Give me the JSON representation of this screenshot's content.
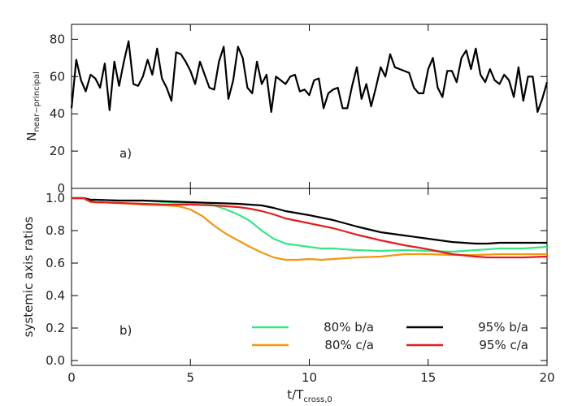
{
  "chart_data": [
    {
      "type": "line",
      "panel_label": "a)",
      "ylabel": {
        "main": "N",
        "sub": "near−principal"
      },
      "xlim": [
        0,
        20
      ],
      "ylim": [
        0,
        88
      ],
      "yticks": [
        "0",
        "20",
        "40",
        "60",
        "80"
      ],
      "ytick_values": [
        0,
        20,
        40,
        60,
        80
      ],
      "series": [
        {
          "color": "#000000",
          "x": [
            0,
            0.2,
            0.4,
            0.6,
            0.8,
            1.0,
            1.2,
            1.4,
            1.6,
            1.8,
            2.0,
            2.2,
            2.4,
            2.6,
            2.8,
            3.0,
            3.2,
            3.4,
            3.6,
            3.8,
            4.0,
            4.2,
            4.4,
            4.6,
            4.8,
            5.0,
            5.2,
            5.4,
            5.6,
            5.8,
            6.0,
            6.2,
            6.4,
            6.6,
            6.8,
            7.0,
            7.2,
            7.4,
            7.6,
            7.8,
            8.0,
            8.2,
            8.4,
            8.6,
            8.8,
            9.0,
            9.2,
            9.4,
            9.6,
            9.8,
            10.0,
            10.2,
            10.4,
            10.6,
            10.8,
            11.0,
            11.2,
            11.4,
            11.6,
            11.8,
            12.0,
            12.2,
            12.4,
            12.6,
            12.8,
            13.0,
            13.2,
            13.4,
            13.6,
            13.8,
            14.0,
            14.2,
            14.4,
            14.6,
            14.8,
            15.0,
            15.2,
            15.4,
            15.6,
            15.8,
            16.0,
            16.2,
            16.4,
            16.6,
            16.8,
            17.0,
            17.2,
            17.4,
            17.6,
            17.8,
            18.0,
            18.2,
            18.4,
            18.6,
            18.8,
            19.0,
            19.2,
            19.4,
            19.6,
            19.8,
            20.0
          ],
          "y": [
            43,
            69,
            58,
            52,
            61,
            59,
            54,
            67,
            42,
            68,
            55,
            68,
            79,
            56,
            55,
            60,
            69,
            61,
            75,
            59,
            54,
            47,
            73,
            72,
            68,
            63,
            56,
            68,
            61,
            54,
            53,
            68,
            76,
            48,
            58,
            76,
            70,
            54,
            51,
            68,
            56,
            61,
            41,
            60,
            58,
            56,
            60,
            61,
            52,
            53,
            50,
            58,
            59,
            43,
            51,
            53,
            54,
            43,
            43,
            55,
            65,
            48,
            56,
            44,
            54,
            65,
            60,
            72,
            65,
            64,
            63,
            62,
            54,
            51,
            51,
            64,
            70,
            54,
            49,
            63,
            63,
            57,
            70,
            74,
            64,
            75,
            61,
            57,
            64,
            58,
            56,
            61,
            58,
            49,
            65,
            47,
            60,
            60,
            41,
            48,
            57
          ]
        }
      ]
    },
    {
      "type": "line",
      "panel_label": "b)",
      "xlabel": {
        "main": "t/T",
        "sub": "cross,0"
      },
      "ylabel": "systemic axis ratios",
      "xlim": [
        0,
        20
      ],
      "ylim": [
        -0.03,
        1.06
      ],
      "xticks": [
        "0",
        "5",
        "10",
        "15",
        "20"
      ],
      "xtick_values": [
        0,
        5,
        10,
        15,
        20
      ],
      "yticks": [
        "0.0",
        "0.2",
        "0.4",
        "0.6",
        "0.8",
        "1.0"
      ],
      "ytick_values": [
        0.0,
        0.2,
        0.4,
        0.6,
        0.8,
        1.0
      ],
      "legend_position": "bottom-right",
      "series": [
        {
          "name": "80% b/a",
          "color": "#33e884",
          "x": [
            0,
            0.5,
            0.8,
            1,
            2,
            3,
            4,
            5,
            5.5,
            6,
            6.5,
            7,
            7.5,
            8,
            8.5,
            9,
            9.5,
            10,
            10.5,
            11,
            12,
            13,
            14,
            15,
            16,
            17,
            18,
            19,
            20
          ],
          "y": [
            1.0,
            1.0,
            0.99,
            0.99,
            0.985,
            0.985,
            0.975,
            0.97,
            0.97,
            0.955,
            0.93,
            0.9,
            0.86,
            0.8,
            0.75,
            0.72,
            0.71,
            0.7,
            0.69,
            0.69,
            0.68,
            0.675,
            0.68,
            0.675,
            0.67,
            0.68,
            0.69,
            0.69,
            0.7
          ]
        },
        {
          "name": "80% c/a",
          "color": "#f5960d",
          "x": [
            0,
            0.5,
            0.8,
            1,
            2,
            3,
            4,
            4.5,
            5,
            5.5,
            6,
            6.5,
            7,
            7.5,
            8,
            8.5,
            9,
            9.5,
            10,
            10.5,
            11,
            12,
            13,
            14,
            15,
            16,
            17,
            18,
            19,
            20
          ],
          "y": [
            1.0,
            1.0,
            0.975,
            0.975,
            0.97,
            0.96,
            0.955,
            0.95,
            0.93,
            0.89,
            0.83,
            0.78,
            0.74,
            0.7,
            0.665,
            0.635,
            0.62,
            0.62,
            0.625,
            0.62,
            0.625,
            0.635,
            0.64,
            0.655,
            0.655,
            0.65,
            0.65,
            0.655,
            0.655,
            0.655
          ]
        },
        {
          "name": "95% b/a",
          "color": "#000000",
          "x": [
            0,
            0.5,
            0.8,
            1,
            2,
            3,
            4,
            5,
            6,
            7,
            8,
            8.5,
            9,
            10,
            11,
            12,
            13,
            14,
            15,
            16,
            17,
            17.5,
            18,
            19,
            20
          ],
          "y": [
            1.0,
            1.0,
            0.99,
            0.99,
            0.985,
            0.985,
            0.98,
            0.975,
            0.97,
            0.965,
            0.955,
            0.94,
            0.92,
            0.895,
            0.865,
            0.825,
            0.79,
            0.77,
            0.75,
            0.73,
            0.72,
            0.72,
            0.725,
            0.725,
            0.725
          ]
        },
        {
          "name": "95% c/a",
          "color": "#e41c1c",
          "x": [
            0,
            0.5,
            0.8,
            1,
            2,
            3,
            4,
            5,
            6,
            7,
            7.5,
            8,
            8.5,
            9,
            10,
            11,
            12,
            13,
            14,
            15,
            16,
            17,
            17.5,
            18,
            19,
            20
          ],
          "y": [
            1.0,
            1.0,
            0.98,
            0.975,
            0.97,
            0.965,
            0.96,
            0.96,
            0.955,
            0.945,
            0.935,
            0.92,
            0.9,
            0.875,
            0.845,
            0.815,
            0.775,
            0.74,
            0.71,
            0.685,
            0.655,
            0.64,
            0.635,
            0.635,
            0.635,
            0.64
          ]
        }
      ]
    }
  ]
}
